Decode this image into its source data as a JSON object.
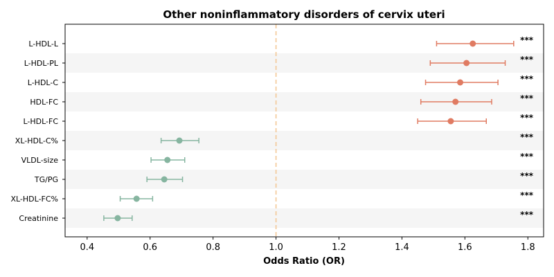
{
  "chart_data": {
    "type": "forest",
    "title": "Other noninflammatory disorders of cervix uteri",
    "xlabel": "Odds Ratio (OR)",
    "ylabel": "",
    "xlim": [
      0.33,
      1.85
    ],
    "xticks": [
      0.4,
      0.6,
      0.8,
      1.0,
      1.2,
      1.4,
      1.6,
      1.8
    ],
    "xtick_labels": [
      "0.4",
      "0.6",
      "0.8",
      "1.0",
      "1.2",
      "1.4",
      "1.6",
      "1.8"
    ],
    "reference_line": 1.0,
    "categories": [
      "L-HDL-L",
      "L-HDL-PL",
      "L-HDL-C",
      "HDL-FC",
      "L-HDL-FC",
      "XL-HDL-C%",
      "VLDL-size",
      "TG/PG",
      "XL-HDL-FC%",
      "Creatinine"
    ],
    "or": [
      1.625,
      1.605,
      1.585,
      1.57,
      1.555,
      0.693,
      0.655,
      0.645,
      0.557,
      0.497
    ],
    "ci_low": [
      1.51,
      1.49,
      1.475,
      1.46,
      1.45,
      0.635,
      0.603,
      0.59,
      0.505,
      0.453
    ],
    "ci_high": [
      1.755,
      1.728,
      1.705,
      1.685,
      1.668,
      0.755,
      0.71,
      0.703,
      0.608,
      0.543
    ],
    "significance": [
      "***",
      "***",
      "***",
      "***",
      "***",
      "***",
      "***",
      "***",
      "***",
      "***"
    ],
    "colors": {
      "risk": "#E07B62",
      "protective": "#86B5A0",
      "reference": "#F3C48E",
      "band": "#F5F5F5"
    }
  }
}
